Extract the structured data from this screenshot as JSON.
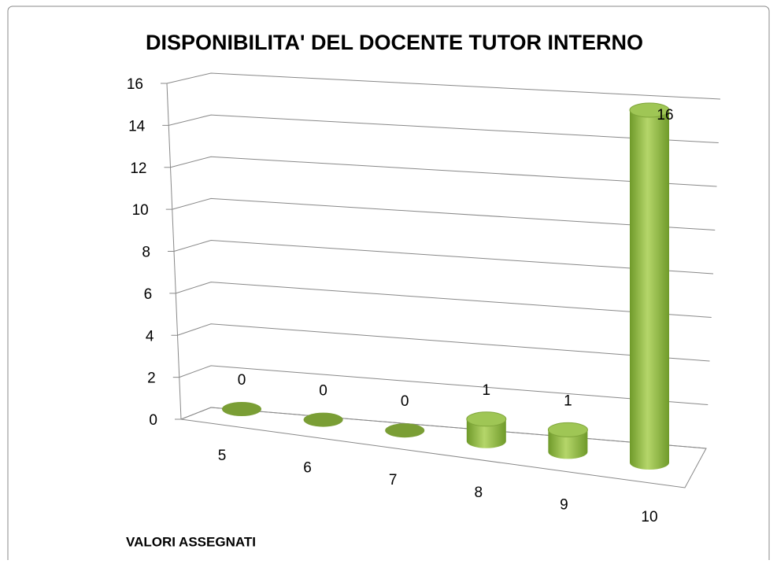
{
  "chart_data": {
    "type": "bar3d",
    "title": "DISPONIBILITA' DEL DOCENTE TUTOR INTERNO",
    "x_label": "VALORI ASSEGNATI",
    "categories": [
      "5",
      "6",
      "7",
      "8",
      "9",
      "10"
    ],
    "values": [
      0,
      0,
      0,
      1,
      1,
      16
    ],
    "color": "#8cb43c",
    "ylim": [
      0,
      16
    ],
    "yticks": [
      0,
      2,
      4,
      6,
      8,
      10,
      12,
      14,
      16
    ],
    "grid": true
  }
}
